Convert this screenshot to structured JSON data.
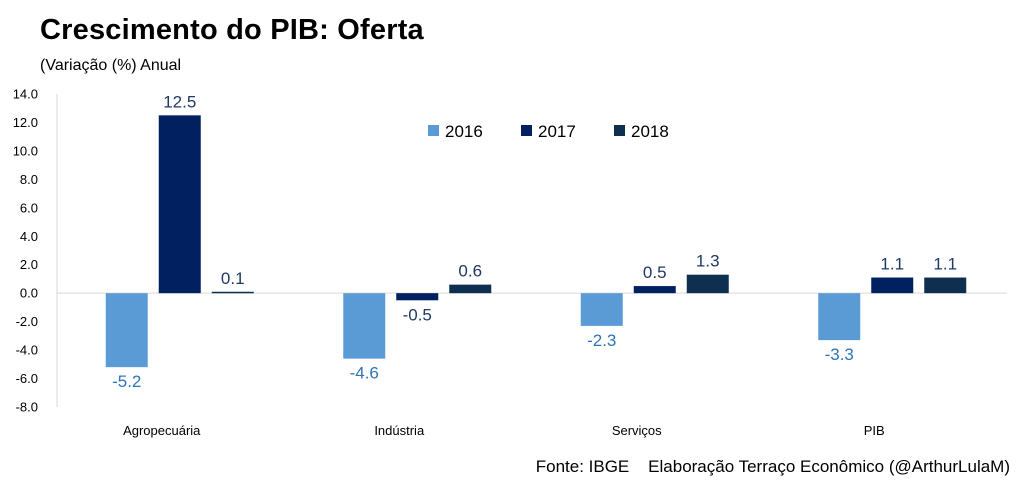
{
  "header": {
    "title": "Crescimento do PIB: Oferta",
    "subtitle": "(Variação (%) Anual"
  },
  "footer": {
    "source": "Fonte: IBGE    Elaboração Terraço Econômico (@ArthurLulaM)"
  },
  "chart_data": {
    "type": "bar",
    "categories": [
      "Agropecuária",
      "Indústria",
      "Serviços",
      "PIB"
    ],
    "series": [
      {
        "name": "2016",
        "values": [
          -5.2,
          -4.6,
          -2.3,
          -3.3
        ],
        "color": "#5b9bd5",
        "label_color": "#2e75b6"
      },
      {
        "name": "2017",
        "values": [
          12.5,
          -0.5,
          0.5,
          1.1
        ],
        "color": "#002060",
        "label_color": "#1f3864"
      },
      {
        "name": "2018",
        "values": [
          0.1,
          0.6,
          1.3,
          1.1
        ],
        "color": "#0e2f4f",
        "label_color": "#1f3864"
      }
    ],
    "data_labels": [
      [
        "-5.2",
        "-4.6",
        "-2.3",
        "-3.3"
      ],
      [
        "12.5",
        "-0.5",
        "0.5",
        "1.1"
      ],
      [
        "0.1",
        "0.6",
        "1.3",
        "1.1"
      ]
    ],
    "yticks": [
      "14.0",
      "12.0",
      "10.0",
      "8.0",
      "6.0",
      "4.0",
      "2.0",
      "0.0",
      "-2.0",
      "-4.0",
      "-6.0",
      "-8.0"
    ],
    "ylim": [
      -8,
      14
    ],
    "legend_position": "top-center",
    "grid": false
  }
}
